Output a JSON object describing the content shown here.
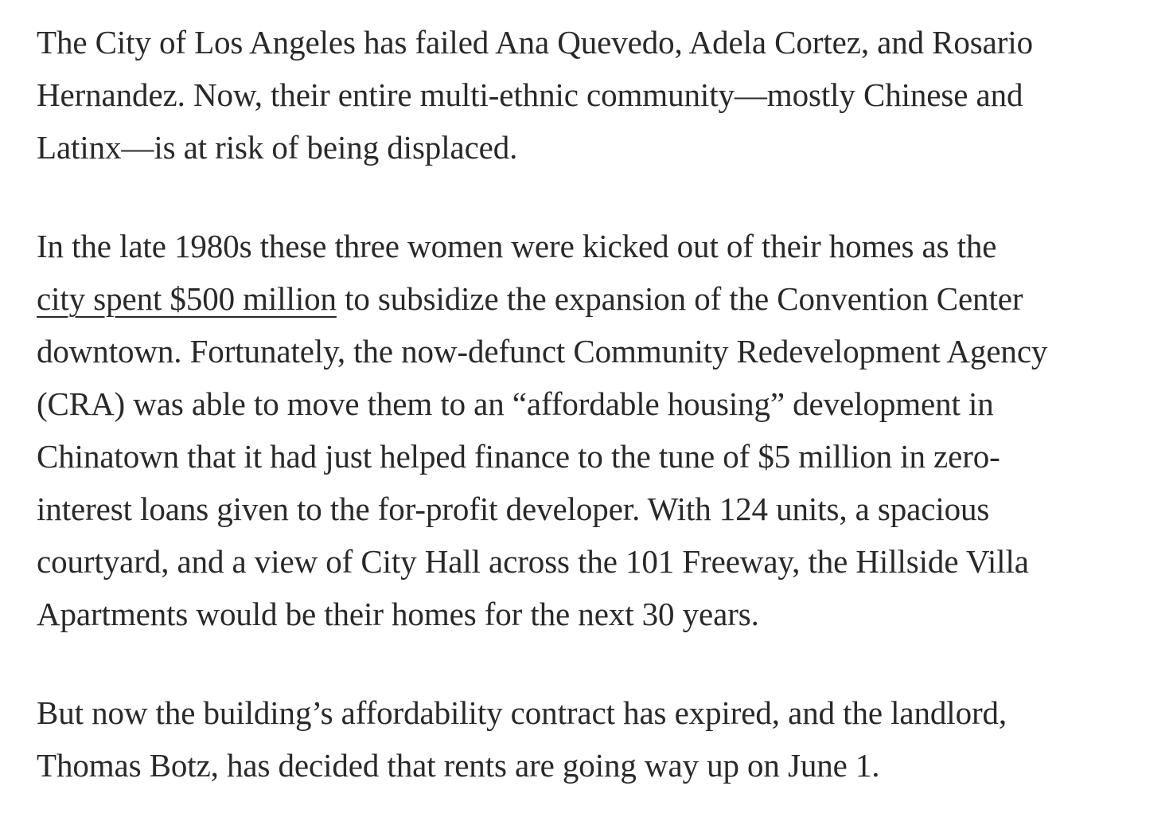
{
  "article": {
    "paragraph_1": {
      "lines": [
        "The City of Los Angeles has failed Ana Quevedo, Adela Cortez, and Rosario",
        "Hernandez. Now, their entire multi-ethnic community—mostly Chinese and",
        "Latinx—is at risk of being displaced."
      ]
    },
    "paragraph_2": {
      "line_1": "In the late 1980s these three women were kicked out of their homes as the",
      "link_text": "city spent $500 million",
      "line_2_rest": " to subsidize the expansion of the Convention Center",
      "lines_rest": [
        "downtown. Fortunately, the now-defunct Community Redevelopment Agency",
        "(CRA) was able to move them to an “affordable housing” development in",
        "Chinatown that it had just helped finance to the tune of $5 million in zero-",
        "interest loans given to the for-profit developer. With 124 units, a spacious",
        "courtyard, and a view of City Hall across the 101 Freeway, the Hillside Villa",
        "Apartments would be their homes for the next 30 years."
      ]
    },
    "paragraph_3": {
      "lines": [
        "But now the building’s affordability contract has expired, and the landlord,",
        "Thomas Botz, has decided that rents are going way up on June 1."
      ]
    }
  }
}
